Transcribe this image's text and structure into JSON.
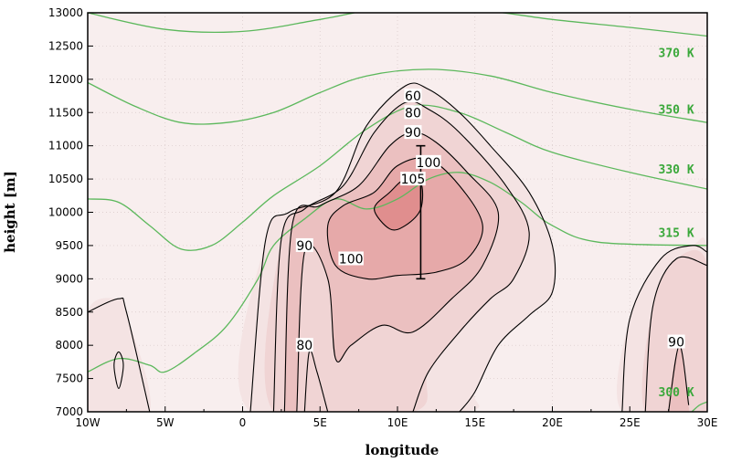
{
  "chart_data": {
    "type": "contour",
    "xlabel": "longitude",
    "ylabel": "height [m]",
    "xlim": [
      -10,
      30
    ],
    "ylim": [
      7000,
      13000
    ],
    "x_ticks": [
      {
        "value": -10,
        "label": "10W"
      },
      {
        "value": -5,
        "label": "5W"
      },
      {
        "value": 0,
        "label": "0"
      },
      {
        "value": 5,
        "label": "5E"
      },
      {
        "value": 10,
        "label": "10E"
      },
      {
        "value": 15,
        "label": "15E"
      },
      {
        "value": 20,
        "label": "20E"
      },
      {
        "value": 25,
        "label": "25E"
      },
      {
        "value": 30,
        "label": "30E"
      }
    ],
    "y_ticks": [
      7000,
      7500,
      8000,
      8500,
      9000,
      9500,
      10000,
      10500,
      11000,
      11500,
      12000,
      12500,
      13000
    ],
    "grid": true,
    "colors": {
      "fill_low": "#f8eeee",
      "fill_high": "#e58c8c",
      "contour": "#000000",
      "isentrope": "#5cb85c",
      "label_color": "#3aa83a"
    },
    "shading": [
      {
        "level": 60,
        "color": "#f4e3e3",
        "points": [
          [
            -10,
            8500
          ],
          [
            -8,
            8700
          ],
          [
            -7.5,
            8500
          ],
          [
            -6,
            7000
          ],
          [
            -10,
            7000
          ]
        ]
      },
      {
        "level": 60,
        "color": "#f4e3e3",
        "points": [
          [
            0.5,
            7000
          ],
          [
            1.5,
            9600
          ],
          [
            3,
            10000
          ],
          [
            6,
            10300
          ],
          [
            8,
            11300
          ],
          [
            10.5,
            11900
          ],
          [
            12,
            11850
          ],
          [
            14,
            11500
          ],
          [
            16,
            11000
          ],
          [
            18.5,
            10300
          ],
          [
            20,
            9500
          ],
          [
            20,
            8800
          ],
          [
            18.5,
            8450
          ],
          [
            16.5,
            8000
          ],
          [
            15,
            7300
          ],
          [
            14,
            7000
          ]
        ]
      },
      {
        "level": 60,
        "color": "#f4e3e3",
        "points": [
          [
            24.5,
            7000
          ],
          [
            25,
            8400
          ],
          [
            27,
            9300
          ],
          [
            29,
            9500
          ],
          [
            30,
            9400
          ],
          [
            30,
            7000
          ]
        ]
      },
      {
        "level": 80,
        "color": "#f0d4d4",
        "points": [
          [
            2,
            7000
          ],
          [
            2.5,
            9600
          ],
          [
            4,
            10050
          ],
          [
            6.5,
            10400
          ],
          [
            8.5,
            11200
          ],
          [
            10.5,
            11650
          ],
          [
            12,
            11550
          ],
          [
            14,
            11200
          ],
          [
            17,
            10400
          ],
          [
            18.5,
            9700
          ],
          [
            17.5,
            9000
          ],
          [
            16,
            8700
          ],
          [
            14,
            8200
          ],
          [
            12,
            7600
          ],
          [
            11,
            7000
          ]
        ]
      },
      {
        "level": 80,
        "color": "#f0d4d4",
        "points": [
          [
            26,
            7000
          ],
          [
            26.5,
            8600
          ],
          [
            28,
            9300
          ],
          [
            30,
            9200
          ],
          [
            30,
            7000
          ]
        ]
      },
      {
        "level": 90,
        "color": "#ebc0c0",
        "points": [
          [
            2.7,
            7000
          ],
          [
            3.2,
            9800
          ],
          [
            5,
            10100
          ],
          [
            7.5,
            10400
          ],
          [
            9.5,
            11000
          ],
          [
            11,
            11200
          ],
          [
            12.5,
            11050
          ],
          [
            14.5,
            10600
          ],
          [
            16.5,
            10000
          ],
          [
            15.5,
            9200
          ],
          [
            13.5,
            8700
          ],
          [
            11,
            8200
          ],
          [
            9,
            8300
          ],
          [
            7,
            8000
          ],
          [
            6,
            7800
          ],
          [
            5.5,
            9000
          ],
          [
            4,
            9400
          ],
          [
            3.5,
            7000
          ]
        ]
      },
      {
        "level": 90,
        "color": "#ebc0c0",
        "points": [
          [
            27.5,
            7000
          ],
          [
            28.2,
            8000
          ],
          [
            28.8,
            7100
          ],
          [
            28.6,
            7000
          ]
        ]
      },
      {
        "level": 100,
        "color": "#e6a9a9",
        "points": [
          [
            5.5,
            9800
          ],
          [
            6.5,
            10100
          ],
          [
            8.5,
            10300
          ],
          [
            10,
            10700
          ],
          [
            12,
            10800
          ],
          [
            14,
            10400
          ],
          [
            15.5,
            9800
          ],
          [
            14.5,
            9300
          ],
          [
            12.5,
            9100
          ],
          [
            10,
            9050
          ],
          [
            8,
            9000
          ],
          [
            6,
            9200
          ]
        ]
      },
      {
        "level": 105,
        "color": "#e08e8e",
        "points": [
          [
            8.5,
            10050
          ],
          [
            9.5,
            10300
          ],
          [
            10.5,
            10500
          ],
          [
            11.5,
            10450
          ],
          [
            11.5,
            10050
          ],
          [
            10.5,
            9800
          ],
          [
            9.5,
            9750
          ]
        ]
      }
    ],
    "contours": [
      [
        [
          -10,
          8500
        ],
        [
          -8,
          8700
        ],
        [
          -7.5,
          8500
        ],
        [
          -6,
          7000
        ]
      ],
      [
        [
          -8.3,
          7700
        ],
        [
          -8,
          7900
        ],
        [
          -7.7,
          7700
        ],
        [
          -8,
          7350
        ],
        [
          -8.3,
          7700
        ]
      ],
      [
        [
          0.5,
          7000
        ],
        [
          1.5,
          9600
        ],
        [
          3,
          10000
        ],
        [
          6,
          10300
        ],
        [
          8,
          11300
        ],
        [
          10.5,
          11900
        ],
        [
          12,
          11850
        ],
        [
          14,
          11500
        ],
        [
          16,
          11000
        ],
        [
          18.5,
          10300
        ],
        [
          20,
          9500
        ],
        [
          20,
          8800
        ],
        [
          18.5,
          8450
        ],
        [
          16.5,
          8000
        ],
        [
          15,
          7300
        ],
        [
          14,
          7000
        ]
      ],
      [
        [
          2,
          7000
        ],
        [
          2.5,
          9600
        ],
        [
          4,
          10050
        ],
        [
          6.5,
          10400
        ],
        [
          8.5,
          11200
        ],
        [
          10.5,
          11650
        ],
        [
          12,
          11550
        ],
        [
          14,
          11200
        ],
        [
          17,
          10400
        ],
        [
          18.5,
          9700
        ],
        [
          17.5,
          9000
        ],
        [
          16,
          8700
        ],
        [
          14,
          8200
        ],
        [
          12,
          7600
        ],
        [
          11,
          7000
        ]
      ],
      [
        [
          2.7,
          7000
        ],
        [
          3.2,
          9800
        ],
        [
          5,
          10100
        ],
        [
          7.5,
          10400
        ],
        [
          9.5,
          11000
        ],
        [
          11,
          11200
        ],
        [
          12.5,
          11050
        ],
        [
          14.5,
          10600
        ],
        [
          16.5,
          10000
        ],
        [
          15.5,
          9200
        ],
        [
          13.5,
          8700
        ],
        [
          11,
          8200
        ],
        [
          9,
          8300
        ],
        [
          7,
          8000
        ],
        [
          6,
          7800
        ],
        [
          5.5,
          9000
        ],
        [
          4,
          9400
        ],
        [
          3.5,
          7000
        ]
      ],
      [
        [
          5.5,
          9800
        ],
        [
          6.5,
          10100
        ],
        [
          8.5,
          10300
        ],
        [
          10,
          10700
        ],
        [
          12,
          10800
        ],
        [
          14,
          10400
        ],
        [
          15.5,
          9800
        ],
        [
          14.5,
          9300
        ],
        [
          12.5,
          9100
        ],
        [
          10,
          9050
        ],
        [
          8,
          9000
        ],
        [
          6,
          9200
        ],
        [
          5.5,
          9800
        ]
      ],
      [
        [
          8.5,
          10050
        ],
        [
          9.5,
          10300
        ],
        [
          10.5,
          10500
        ],
        [
          11.5,
          10450
        ],
        [
          11.5,
          10050
        ],
        [
          10.5,
          9800
        ],
        [
          9.5,
          9750
        ],
        [
          8.5,
          10050
        ]
      ],
      [
        [
          4,
          7000
        ],
        [
          4.3,
          7900
        ],
        [
          4.8,
          7600
        ],
        [
          5.5,
          7000
        ]
      ],
      [
        [
          24.5,
          7000
        ],
        [
          25,
          8400
        ],
        [
          27,
          9300
        ],
        [
          29,
          9500
        ],
        [
          30,
          9400
        ]
      ],
      [
        [
          26,
          7000
        ],
        [
          26.5,
          8600
        ],
        [
          28,
          9300
        ],
        [
          30,
          9200
        ]
      ],
      [
        [
          27.5,
          7000
        ],
        [
          28.2,
          8000
        ],
        [
          28.8,
          7100
        ]
      ]
    ],
    "contour_labels": [
      {
        "x": 11,
        "y": 11750,
        "text": "60"
      },
      {
        "x": 11,
        "y": 11500,
        "text": "80"
      },
      {
        "x": 11,
        "y": 11200,
        "text": "90"
      },
      {
        "x": 12,
        "y": 10750,
        "text": "100"
      },
      {
        "x": 11,
        "y": 10500,
        "text": "105"
      },
      {
        "x": 4,
        "y": 9500,
        "text": "90"
      },
      {
        "x": 7,
        "y": 9300,
        "text": "100"
      },
      {
        "x": 4,
        "y": 8000,
        "text": "80"
      },
      {
        "x": 28,
        "y": 8050,
        "text": "90"
      }
    ],
    "isentropes": [
      {
        "label": "370 K",
        "points": [
          [
            -10,
            13000
          ],
          [
            -5,
            12750
          ],
          [
            0,
            12720
          ],
          [
            5,
            12900
          ],
          [
            10,
            13100
          ],
          [
            15,
            13050
          ],
          [
            20,
            12900
          ],
          [
            25,
            12780
          ],
          [
            30,
            12650
          ]
        ]
      },
      {
        "label": "350 K",
        "points": [
          [
            -10,
            11950
          ],
          [
            -7,
            11600
          ],
          [
            -4,
            11350
          ],
          [
            -1,
            11350
          ],
          [
            2,
            11500
          ],
          [
            5,
            11800
          ],
          [
            8,
            12050
          ],
          [
            12,
            12150
          ],
          [
            16,
            12050
          ],
          [
            20,
            11800
          ],
          [
            25,
            11550
          ],
          [
            30,
            11350
          ]
        ]
      },
      {
        "label": "330 K",
        "points": [
          [
            -10,
            10200
          ],
          [
            -8,
            10150
          ],
          [
            -6,
            9800
          ],
          [
            -4,
            9450
          ],
          [
            -2,
            9500
          ],
          [
            0,
            9850
          ],
          [
            2,
            10250
          ],
          [
            5,
            10700
          ],
          [
            8,
            11250
          ],
          [
            11,
            11600
          ],
          [
            14,
            11500
          ],
          [
            17,
            11200
          ],
          [
            20,
            10900
          ],
          [
            25,
            10600
          ],
          [
            30,
            10350
          ]
        ]
      },
      {
        "label": "315 K",
        "points": [
          [
            -10,
            7600
          ],
          [
            -8,
            7800
          ],
          [
            -6,
            7700
          ],
          [
            -5,
            7600
          ],
          [
            -3,
            7900
          ],
          [
            -1,
            8300
          ],
          [
            1,
            9000
          ],
          [
            2,
            9500
          ],
          [
            4,
            9900
          ],
          [
            6,
            10200
          ],
          [
            8,
            10050
          ],
          [
            10,
            10200
          ],
          [
            12,
            10500
          ],
          [
            14,
            10600
          ],
          [
            16,
            10450
          ],
          [
            18,
            10150
          ],
          [
            20,
            9800
          ],
          [
            23,
            9550
          ],
          [
            30,
            9500
          ]
        ]
      },
      {
        "label": "300 K",
        "points": [
          [
            29,
            7000
          ],
          [
            29.5,
            7100
          ],
          [
            30,
            7150
          ]
        ]
      }
    ],
    "isentrope_labels": [
      {
        "x": 28,
        "y": 12400,
        "text": "370 K"
      },
      {
        "x": 28,
        "y": 11550,
        "text": "350 K"
      },
      {
        "x": 28,
        "y": 10650,
        "text": "330 K"
      },
      {
        "x": 28,
        "y": 9700,
        "text": "315 K"
      },
      {
        "x": 28,
        "y": 7300,
        "text": "300 K"
      }
    ],
    "error_bar": {
      "x": 11.5,
      "y_low": 9000,
      "y_high": 11000
    }
  }
}
